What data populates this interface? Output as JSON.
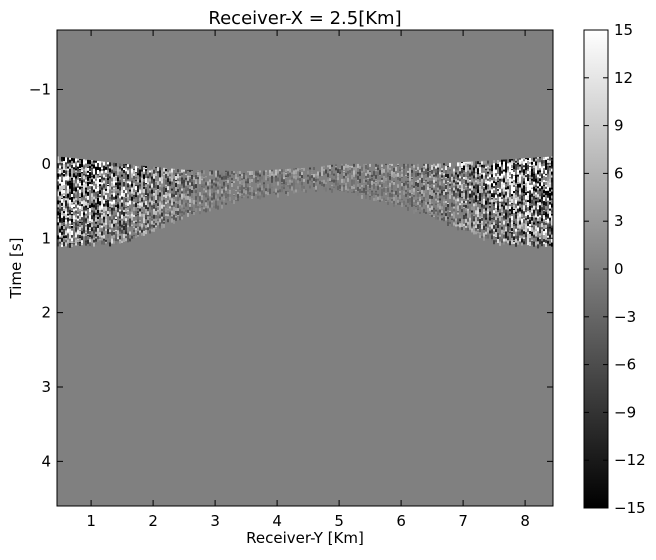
{
  "chart_data": {
    "type": "heatmap",
    "title": "Receiver-X = 2.5[Km]",
    "xlabel": "Receiver-Y [Km]",
    "ylabel": "Time [s]",
    "xlim": [
      0.45,
      8.45
    ],
    "ylim": [
      -1.8,
      4.6
    ],
    "y_inverted": true,
    "x_ticks": [
      1,
      2,
      3,
      4,
      5,
      6,
      7,
      8
    ],
    "x_tick_labels": [
      "1",
      "2",
      "3",
      "4",
      "5",
      "6",
      "7",
      "8"
    ],
    "y_ticks": [
      -1,
      0,
      1,
      2,
      3,
      4
    ],
    "y_tick_labels": [
      "−1",
      "0",
      "1",
      "2",
      "3",
      "4"
    ],
    "colormap": "gray",
    "background_value": 0,
    "colorbar": {
      "min": -15,
      "max": 15,
      "ticks": [
        15,
        12,
        9,
        6,
        3,
        0,
        -3,
        -6,
        -9,
        -12,
        -15
      ],
      "tick_labels": [
        "15",
        "12",
        "9",
        "6",
        "3",
        "0",
        "−3",
        "−6",
        "−9",
        "−12",
        "−15"
      ]
    },
    "event_top_curve": {
      "x": [
        0.45,
        1.5,
        2.5,
        3.5,
        4.5,
        5.0,
        5.5,
        6.5,
        7.5,
        8.45
      ],
      "y": [
        -0.1,
        0.0,
        0.08,
        0.1,
        0.05,
        0.0,
        0.0,
        0.0,
        -0.05,
        -0.1
      ]
    },
    "event_bottom_curve": {
      "x": [
        0.45,
        1.5,
        2.5,
        3.5,
        4.5,
        5.0,
        5.5,
        6.5,
        7.5,
        8.45
      ],
      "y": [
        1.1,
        1.05,
        0.7,
        0.45,
        0.35,
        0.35,
        0.45,
        0.7,
        1.05,
        1.1
      ]
    }
  }
}
